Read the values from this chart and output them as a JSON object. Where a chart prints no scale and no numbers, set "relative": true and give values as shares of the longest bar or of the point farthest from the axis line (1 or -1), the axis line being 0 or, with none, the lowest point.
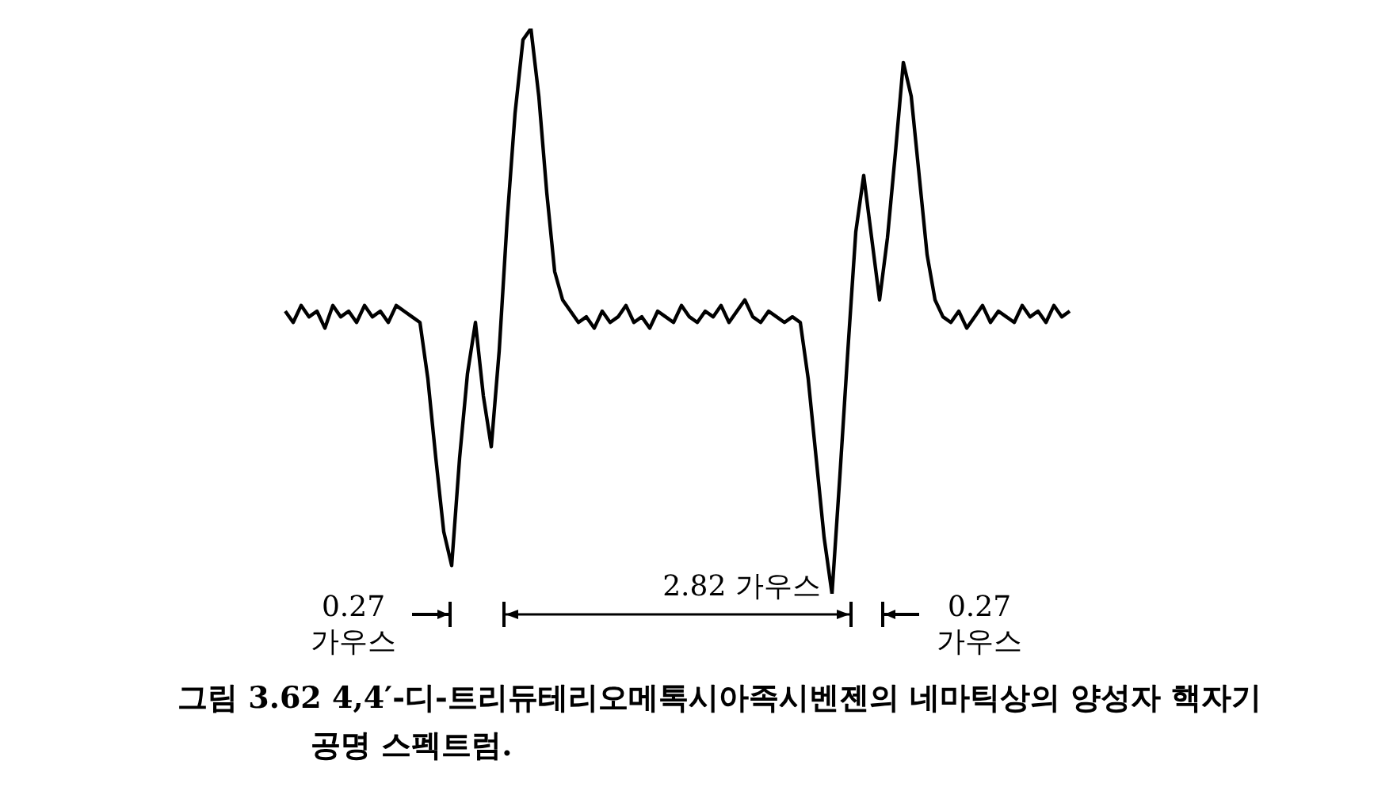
{
  "chart_data": {
    "type": "line",
    "relative": true,
    "categories": [
      null,
      null,
      null,
      null,
      null,
      null,
      null,
      null,
      null,
      null,
      null,
      null,
      null,
      null,
      null,
      null,
      null,
      null,
      null,
      null,
      null,
      null,
      null,
      null,
      null,
      null,
      null,
      null,
      null,
      null,
      null,
      null,
      null,
      null,
      null,
      null,
      null,
      null,
      null,
      null,
      null,
      null,
      null,
      null,
      null,
      null,
      null,
      null,
      null,
      null,
      null,
      null,
      null,
      null,
      null,
      null,
      null,
      null,
      null,
      null,
      null,
      null,
      null,
      null,
      null,
      null,
      null,
      null,
      null,
      null,
      null,
      null,
      null,
      null,
      null,
      null,
      null,
      null,
      null,
      null,
      null,
      null,
      null,
      null,
      null,
      null,
      null,
      null,
      null,
      null,
      null,
      null,
      null,
      null,
      null,
      null,
      null,
      null,
      null,
      null
    ],
    "series": [
      {
        "color": "#000000",
        "values": [
          0.5,
          0.48,
          0.51,
          0.49,
          0.5,
          0.47,
          0.51,
          0.49,
          0.5,
          0.48,
          0.51,
          0.49,
          0.5,
          0.48,
          0.51,
          0.5,
          0.49,
          0.48,
          0.38,
          0.24,
          0.11,
          0.05,
          0.24,
          0.39,
          0.48,
          0.35,
          0.26,
          0.43,
          0.66,
          0.85,
          0.98,
          1.0,
          0.88,
          0.71,
          0.57,
          0.52,
          0.5,
          0.48,
          0.49,
          0.47,
          0.5,
          0.48,
          0.49,
          0.51,
          0.48,
          0.49,
          0.47,
          0.5,
          0.49,
          0.48,
          0.51,
          0.49,
          0.48,
          0.5,
          0.49,
          0.51,
          0.48,
          0.5,
          0.52,
          0.49,
          0.48,
          0.5,
          0.49,
          0.48,
          0.49,
          0.48,
          0.38,
          0.24,
          0.1,
          0,
          0.21,
          0.43,
          0.64,
          0.74,
          0.63,
          0.52,
          0.63,
          0.78,
          0.94,
          0.88,
          0.74,
          0.6,
          0.52,
          0.49,
          0.48,
          0.5,
          0.47,
          0.49,
          0.51,
          0.48,
          0.5,
          0.49,
          0.48,
          0.51,
          0.49,
          0.5,
          0.48,
          0.51,
          0.49,
          0.5
        ]
      }
    ],
    "annotations": [
      "0.27 가우스",
      "2.82 가우스",
      "0.27 가우스",
      "그림 3.62 4,4′-디-트리듀테리오메톡시아족시벤젠의 네마틱상의 양성자 핵자기 공명 스펙트럼."
    ]
  }
}
